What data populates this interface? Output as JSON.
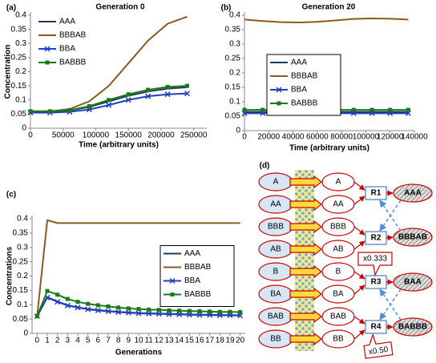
{
  "chart_data": [
    {
      "type": "line",
      "label": "(a)",
      "title": "Generation 0",
      "xlabel": "Time (arbitrary units)",
      "ylabel": "Concentration",
      "x": [
        0,
        30000,
        60000,
        90000,
        120000,
        150000,
        180000,
        210000,
        240000
      ],
      "xlim": [
        0,
        270000
      ],
      "xticks": [
        0,
        50000,
        100000,
        150000,
        200000,
        250000
      ],
      "ylim": [
        0,
        0.4
      ],
      "yticks": [
        0,
        0.05,
        0.1,
        0.15,
        0.2,
        0.25,
        0.3,
        0.35,
        0.4
      ],
      "legend": "upper left",
      "series": [
        {
          "name": "AAA",
          "color": "#1f3a5f",
          "marker": "none",
          "values": [
            0.06,
            0.06,
            0.063,
            0.075,
            0.095,
            0.115,
            0.13,
            0.14,
            0.145
          ]
        },
        {
          "name": "BBBAB",
          "color": "#8b5a1e",
          "marker": "none",
          "values": [
            0.06,
            0.06,
            0.068,
            0.095,
            0.15,
            0.23,
            0.31,
            0.37,
            0.395
          ]
        },
        {
          "name": "BBA",
          "color": "#1f3fbf",
          "marker": "x",
          "values": [
            0.055,
            0.055,
            0.058,
            0.066,
            0.082,
            0.1,
            0.113,
            0.12,
            0.123
          ]
        },
        {
          "name": "BABBB",
          "color": "#1a7a1a",
          "marker": "square",
          "values": [
            0.06,
            0.06,
            0.064,
            0.078,
            0.1,
            0.12,
            0.136,
            0.146,
            0.15
          ]
        }
      ]
    },
    {
      "type": "line",
      "label": "(b)",
      "title": "Generation 20",
      "xlabel": "Time (arbitrary units)",
      "x": [
        0,
        15000,
        30000,
        45000,
        60000,
        75000,
        90000,
        105000,
        120000,
        135000
      ],
      "xlim": [
        0,
        140000
      ],
      "xticks": [
        0,
        20000,
        40000,
        60000,
        80000,
        100000,
        120000,
        140000
      ],
      "ylim": [
        0,
        0.4
      ],
      "yticks": [
        0,
        0.05,
        0.1,
        0.15,
        0.2,
        0.25,
        0.3,
        0.35,
        0.4
      ],
      "legend": "center left",
      "series": [
        {
          "name": "AAA",
          "color": "#1f3a5f",
          "marker": "none",
          "values": [
            0.065,
            0.065,
            0.065,
            0.065,
            0.065,
            0.065,
            0.065,
            0.065,
            0.065,
            0.065
          ]
        },
        {
          "name": "BBBAB",
          "color": "#8b5a1e",
          "marker": "none",
          "values": [
            0.385,
            0.38,
            0.376,
            0.375,
            0.377,
            0.382,
            0.387,
            0.389,
            0.388,
            0.385
          ]
        },
        {
          "name": "BBA",
          "color": "#1f3fbf",
          "marker": "x",
          "values": [
            0.06,
            0.06,
            0.06,
            0.06,
            0.06,
            0.06,
            0.06,
            0.06,
            0.06,
            0.06
          ]
        },
        {
          "name": "BABBB",
          "color": "#1a7a1a",
          "marker": "square",
          "values": [
            0.072,
            0.072,
            0.072,
            0.072,
            0.072,
            0.072,
            0.072,
            0.072,
            0.072,
            0.072
          ]
        }
      ]
    },
    {
      "type": "line",
      "label": "(c)",
      "xlabel": "Generations",
      "ylabel": "Concentrations",
      "x": [
        0,
        1,
        2,
        3,
        4,
        5,
        6,
        7,
        8,
        9,
        10,
        11,
        12,
        13,
        14,
        15,
        16,
        17,
        18,
        19,
        20
      ],
      "xlim": [
        -0.5,
        20.5
      ],
      "xticks": [
        0,
        1,
        2,
        3,
        4,
        5,
        6,
        7,
        8,
        9,
        10,
        11,
        12,
        13,
        14,
        15,
        16,
        17,
        18,
        19,
        20
      ],
      "ylim": [
        0,
        0.4
      ],
      "yticks": [
        0,
        0.05,
        0.1,
        0.15,
        0.2,
        0.25,
        0.3,
        0.35,
        0.4
      ],
      "legend": "center right",
      "series": [
        {
          "name": "AAA",
          "color": "#1f3a5f",
          "marker": "none",
          "values": [
            0.06,
            0.126,
            0.111,
            0.098,
            0.091,
            0.085,
            0.081,
            0.078,
            0.075,
            0.073,
            0.071,
            0.07,
            0.069,
            0.068,
            0.067,
            0.066,
            0.065,
            0.065,
            0.064,
            0.064,
            0.063
          ]
        },
        {
          "name": "BBBAB",
          "color": "#8b5a1e",
          "marker": "none",
          "values": [
            0.06,
            0.395,
            0.385,
            0.385,
            0.385,
            0.385,
            0.385,
            0.385,
            0.385,
            0.385,
            0.385,
            0.385,
            0.385,
            0.385,
            0.385,
            0.385,
            0.385,
            0.385,
            0.385,
            0.385,
            0.385
          ]
        },
        {
          "name": "BBA",
          "color": "#1f3fbf",
          "marker": "x",
          "values": [
            0.06,
            0.125,
            0.11,
            0.097,
            0.09,
            0.084,
            0.08,
            0.077,
            0.074,
            0.072,
            0.07,
            0.069,
            0.068,
            0.067,
            0.066,
            0.065,
            0.064,
            0.064,
            0.063,
            0.063,
            0.062
          ]
        },
        {
          "name": "BABBB",
          "color": "#1a7a1a",
          "marker": "square",
          "values": [
            0.06,
            0.148,
            0.135,
            0.12,
            0.11,
            0.103,
            0.098,
            0.094,
            0.09,
            0.087,
            0.085,
            0.083,
            0.082,
            0.08,
            0.079,
            0.078,
            0.077,
            0.076,
            0.075,
            0.075,
            0.074
          ]
        }
      ]
    }
  ],
  "diagram": {
    "label": "(d)",
    "inputs": [
      "A",
      "AA",
      "BBB",
      "AB",
      "B",
      "BA",
      "BAB",
      "BB"
    ],
    "reactions": [
      "R1",
      "R2",
      "R3",
      "R4"
    ],
    "products": [
      "AAA",
      "BBBAB",
      "BAA",
      "BABBB"
    ],
    "multipliers": [
      "x0.333",
      "x0.50"
    ]
  }
}
